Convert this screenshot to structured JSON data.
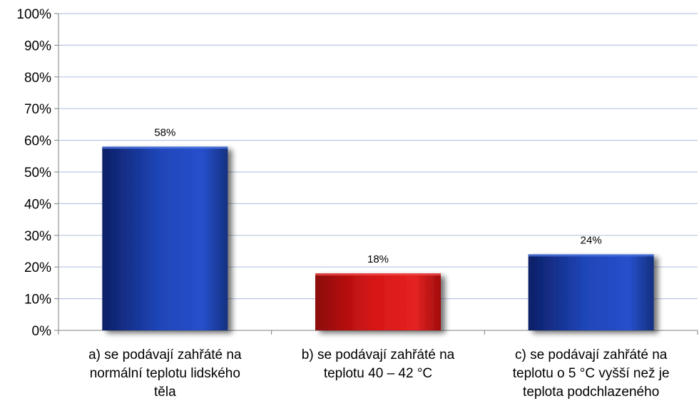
{
  "chart_data": {
    "type": "bar",
    "categories": [
      [
        "a) se podávají zahřáté na",
        "normální teplotu lidského",
        "těla"
      ],
      [
        "b) se podávají zahřáté na",
        "teplotu 40 – 42 °C"
      ],
      [
        "c) se podávají zahřáté na",
        "teplotu o 5 °C vyšší než je",
        "teplota podchlazeného"
      ]
    ],
    "values": [
      58,
      18,
      24
    ],
    "data_labels": [
      "58%",
      "18%",
      "24%"
    ],
    "bar_colors": [
      "#1a3a9c",
      "#cc1414",
      "#1a3a9c"
    ],
    "y_ticks": [
      "0%",
      "10%",
      "20%",
      "30%",
      "40%",
      "50%",
      "60%",
      "70%",
      "80%",
      "90%",
      "100%"
    ],
    "ylim": [
      0,
      100
    ],
    "grid": true,
    "title": "",
    "xlabel": "",
    "ylabel": ""
  }
}
